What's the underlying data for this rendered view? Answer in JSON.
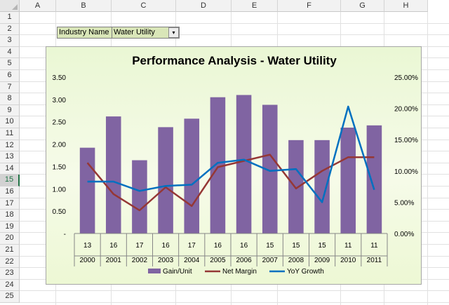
{
  "columns": [
    "A",
    "B",
    "C",
    "D",
    "E",
    "F",
    "G",
    "H"
  ],
  "rows": [
    "1",
    "2",
    "3",
    "4",
    "5",
    "6",
    "7",
    "8",
    "9",
    "10",
    "11",
    "12",
    "13",
    "14",
    "15",
    "16",
    "17",
    "18",
    "19",
    "20",
    "21",
    "22",
    "23",
    "24",
    "25"
  ],
  "active_row": "15",
  "filter": {
    "label": "Industry Name",
    "value": "Water Utility",
    "button_glyph": "▾"
  },
  "chart_data": {
    "type": "bar",
    "title": "Performance Analysis - Water Utility",
    "categories_top": [
      "13",
      "16",
      "17",
      "16",
      "17",
      "16",
      "16",
      "15",
      "15",
      "15",
      "11",
      "11"
    ],
    "categories": [
      "2000",
      "2001",
      "2002",
      "2003",
      "2004",
      "2005",
      "2006",
      "2007",
      "2008",
      "2009",
      "2010",
      "2011"
    ],
    "left_axis": {
      "ticks": [
        "3.50",
        "3.00",
        "2.50",
        "2.00",
        "1.50",
        "1.00",
        "0.50",
        "-"
      ],
      "ylim": [
        0,
        3.5
      ]
    },
    "right_axis": {
      "ticks": [
        "25.00%",
        "20.00%",
        "15.00%",
        "10.00%",
        "5.00%",
        "0.00%"
      ],
      "ylim": [
        0,
        25
      ]
    },
    "grid": false,
    "legend_position": "bottom",
    "series": [
      {
        "name": "Gain/Unit",
        "kind": "bar",
        "axis": "left",
        "color": "#8064a2",
        "values": [
          1.92,
          2.62,
          1.64,
          2.38,
          2.57,
          3.05,
          3.1,
          2.88,
          2.09,
          2.09,
          2.37,
          2.42
        ]
      },
      {
        "name": "Net Margin",
        "kind": "line",
        "axis": "right",
        "color": "#953735",
        "values": [
          11.3,
          6.3,
          3.7,
          7.4,
          4.4,
          10.6,
          11.6,
          12.6,
          7.2,
          10.0,
          12.2,
          12.2
        ]
      },
      {
        "name": "YoY Growth",
        "kind": "line",
        "axis": "right",
        "color": "#0070c0",
        "values": [
          8.3,
          8.3,
          6.8,
          7.6,
          7.8,
          11.3,
          11.8,
          10.0,
          10.3,
          5.0,
          20.3,
          7.0
        ]
      }
    ]
  }
}
